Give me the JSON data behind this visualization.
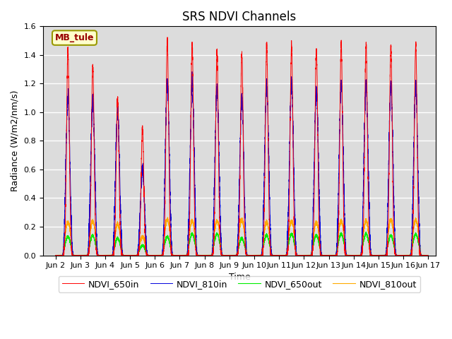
{
  "title": "SRS NDVI Channels",
  "xlabel": "Time",
  "ylabel": "Radiance (W/m2/nm/s)",
  "xlim_days": [
    1.5,
    17.3
  ],
  "ylim": [
    0.0,
    1.6
  ],
  "yticks": [
    0.0,
    0.2,
    0.4,
    0.6,
    0.8,
    1.0,
    1.2,
    1.4,
    1.6
  ],
  "xtick_positions": [
    2,
    3,
    4,
    5,
    6,
    7,
    8,
    9,
    10,
    11,
    12,
    13,
    14,
    15,
    16,
    17
  ],
  "xtick_labels": [
    "Jun 2",
    "Jun 3",
    "Jun 4",
    "Jun 5",
    "Jun 6",
    "Jun 7",
    "Jun 8",
    "Jun 9",
    "Jun 10",
    "Jun 11",
    "Jun 12",
    "Jun 13",
    "Jun 14",
    "Jun 15",
    "Jun 16",
    "Jun 17"
  ],
  "annotation_text": "MB_tule",
  "colors": {
    "NDVI_650in": "#ff0000",
    "NDVI_810in": "#0000dd",
    "NDVI_650out": "#00ee00",
    "NDVI_810out": "#ffaa00"
  },
  "background_color": "#dcdcdc",
  "num_days": 15,
  "start_day": 2,
  "peak_650in": [
    1.43,
    1.32,
    1.1,
    0.89,
    1.49,
    1.47,
    1.42,
    1.41,
    1.46,
    1.47,
    1.44,
    1.47,
    1.47,
    1.46,
    1.47
  ],
  "peak_810in": [
    1.11,
    1.09,
    1.01,
    0.61,
    1.21,
    1.2,
    1.17,
    1.1,
    1.18,
    1.19,
    1.15,
    1.2,
    1.2,
    1.19,
    1.19
  ],
  "peak_650out": [
    0.13,
    0.14,
    0.12,
    0.07,
    0.13,
    0.15,
    0.15,
    0.12,
    0.14,
    0.15,
    0.14,
    0.15,
    0.15,
    0.14,
    0.15
  ],
  "peak_810out": [
    0.23,
    0.24,
    0.22,
    0.13,
    0.25,
    0.24,
    0.24,
    0.25,
    0.23,
    0.24,
    0.23,
    0.24,
    0.24,
    0.25,
    0.25
  ]
}
